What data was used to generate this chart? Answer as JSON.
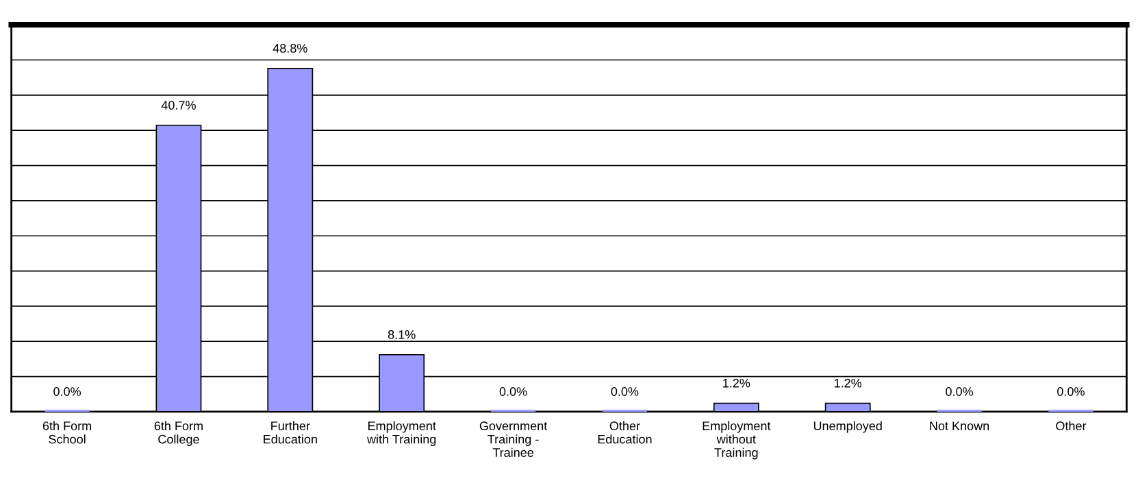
{
  "chart_data": {
    "type": "bar",
    "categories": [
      "6th Form\nSchool",
      "6th Form\nCollege",
      "Further\nEducation",
      "Employment\nwith Training",
      "Government\nTraining -\nTrainee",
      "Other\nEducation",
      "Employment\nwithout\nTraining",
      "Unemployed",
      "Not Known",
      "Other"
    ],
    "values": [
      0.0,
      40.7,
      48.8,
      8.1,
      0.0,
      0.0,
      1.2,
      1.2,
      0.0,
      0.0
    ],
    "value_labels": [
      "0.0%",
      "40.7%",
      "48.8%",
      "8.1%",
      "0.0%",
      "0.0%",
      "1.2%",
      "1.2%",
      "0.0%",
      "0.0%"
    ],
    "color": "#9999ff",
    "ylim": [
      0,
      55
    ],
    "yticks": [
      {
        "value": 0,
        "label": null
      },
      {
        "value": 5,
        "label": null
      },
      {
        "value": 10,
        "label": null
      },
      {
        "value": 15,
        "label": null
      },
      {
        "value": 20,
        "label": null
      },
      {
        "value": 25,
        "label": null
      },
      {
        "value": 30,
        "label": null
      },
      {
        "value": 35,
        "label": null
      },
      {
        "value": 40,
        "label": null
      },
      {
        "value": 45,
        "label": null
      },
      {
        "value": 50,
        "label": null
      }
    ],
    "grid": "y",
    "tick_labels": "x"
  }
}
